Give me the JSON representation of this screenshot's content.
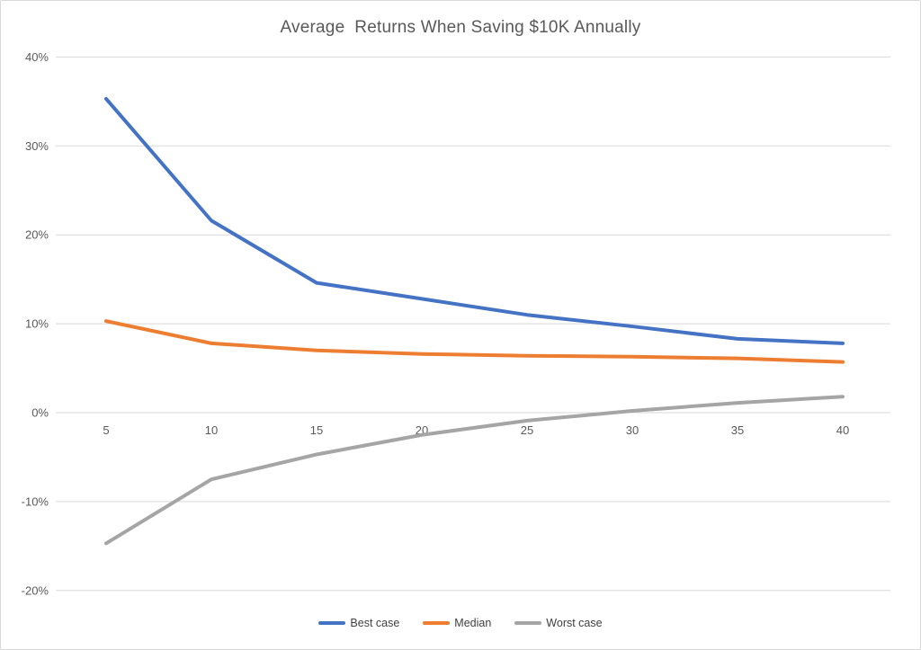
{
  "title": "Average  Returns When Saving $10K Annually",
  "colors": {
    "background": "#FFFFFF",
    "border": "#D9D9D9",
    "grid": "#D9D9D9",
    "axis_text": "#595959",
    "title_text": "#595959",
    "legend_text": "#404040",
    "best_case": "#4472C4",
    "median": "#ED7D31",
    "worst_case": "#A5A5A5"
  },
  "chart_data": {
    "type": "line",
    "title": "Average  Returns When Saving $10K Annually",
    "xlabel": "",
    "ylabel": "",
    "x": [
      5,
      10,
      15,
      20,
      25,
      30,
      35,
      40
    ],
    "xtick_labels": [
      "5",
      "10",
      "15",
      "20",
      "25",
      "30",
      "35",
      "40"
    ],
    "ylim": [
      -20,
      40
    ],
    "ytick_values": [
      40,
      30,
      20,
      10,
      0,
      -10,
      -20
    ],
    "ytick_labels": [
      "40%",
      "30%",
      "20%",
      "10%",
      "0%",
      "-10%",
      "-20%"
    ],
    "grid": true,
    "legend_position": "bottom-center",
    "series": [
      {
        "name": "Best case",
        "color": "#4472C4",
        "values": [
          35.3,
          21.6,
          14.6,
          12.8,
          11.0,
          9.7,
          8.3,
          7.8
        ]
      },
      {
        "name": "Median",
        "color": "#ED7D31",
        "values": [
          10.3,
          7.8,
          7.0,
          6.6,
          6.4,
          6.3,
          6.1,
          5.7
        ]
      },
      {
        "name": "Worst case",
        "color": "#A5A5A5",
        "values": [
          -14.7,
          -7.5,
          -4.7,
          -2.5,
          -0.9,
          0.2,
          1.1,
          1.8
        ]
      }
    ]
  }
}
